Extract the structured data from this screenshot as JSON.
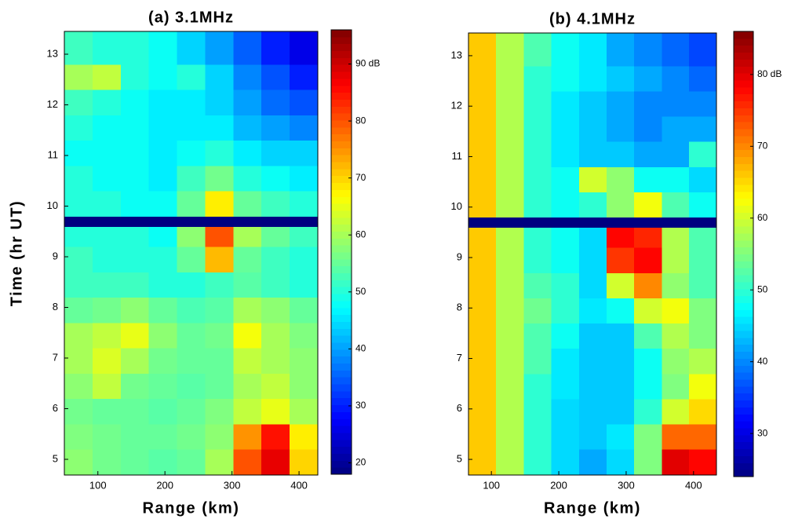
{
  "chart_data": [
    {
      "type": "heatmap",
      "title": "(a) 3.1MHz",
      "xlabel": "Range (km)",
      "ylabel": "Time (hr UT)",
      "colormap": "jet",
      "xlim": [
        50,
        428
      ],
      "ylim": [
        4.69,
        13.45
      ],
      "xticks": [
        100,
        200,
        300,
        400
      ],
      "yticks": [
        5,
        6,
        7,
        8,
        9,
        10,
        11,
        12,
        13
      ],
      "clim": [
        18,
        96
      ],
      "cticks": [
        20,
        30,
        40,
        50,
        60,
        70,
        80,
        {
          "value": 90,
          "label": "90 dB"
        }
      ],
      "x_bins": [
        50,
        92,
        134,
        176,
        218,
        260,
        302,
        344,
        386,
        428
      ],
      "y_bins": [
        4.69,
        5.2,
        5.7,
        6.2,
        6.7,
        7.2,
        7.7,
        8.2,
        8.7,
        9.2,
        9.6,
        9.8,
        10.3,
        10.8,
        11.3,
        11.8,
        12.3,
        12.8,
        13.45
      ],
      "z": [
        [
          58,
          56,
          55,
          54,
          55,
          60,
          80,
          88,
          70
        ],
        [
          57,
          56,
          55,
          55,
          56,
          58,
          75,
          85,
          68
        ],
        [
          56,
          55,
          55,
          54,
          55,
          57,
          62,
          65,
          60
        ],
        [
          58,
          62,
          56,
          55,
          54,
          55,
          60,
          62,
          58
        ],
        [
          60,
          64,
          60,
          56,
          55,
          55,
          62,
          60,
          58
        ],
        [
          60,
          62,
          65,
          58,
          55,
          56,
          66,
          60,
          57
        ],
        [
          55,
          56,
          58,
          55,
          53,
          54,
          60,
          58,
          55
        ],
        [
          52,
          52,
          52,
          50,
          50,
          52,
          54,
          52,
          50
        ],
        [
          52,
          50,
          50,
          50,
          55,
          72,
          55,
          52,
          50
        ],
        [
          50,
          50,
          50,
          48,
          58,
          80,
          60,
          55,
          52
        ],
        [
          null,
          null,
          null,
          null,
          null,
          null,
          null,
          null,
          null
        ],
        [
          50,
          50,
          48,
          48,
          55,
          68,
          55,
          52,
          50
        ],
        [
          50,
          48,
          48,
          46,
          52,
          56,
          50,
          48,
          46
        ],
        [
          48,
          48,
          48,
          46,
          48,
          50,
          46,
          44,
          44
        ],
        [
          50,
          48,
          48,
          46,
          46,
          46,
          42,
          40,
          38
        ],
        [
          52,
          50,
          48,
          46,
          46,
          44,
          40,
          36,
          34
        ],
        [
          60,
          62,
          50,
          48,
          50,
          44,
          38,
          34,
          30
        ],
        [
          52,
          50,
          50,
          48,
          44,
          40,
          35,
          30,
          26
        ]
      ]
    },
    {
      "type": "heatmap",
      "title": "(b) 4.1MHz",
      "xlabel": "Range (km)",
      "colormap": "jet",
      "xlim": [
        66,
        434
      ],
      "ylim": [
        4.69,
        13.45
      ],
      "xticks": [
        100,
        200,
        300,
        400
      ],
      "yticks": [
        5,
        6,
        7,
        8,
        9,
        10,
        11,
        12,
        13
      ],
      "clim": [
        24,
        86
      ],
      "cticks": [
        30,
        40,
        50,
        60,
        70,
        {
          "value": 80,
          "label": "80 dB"
        }
      ],
      "x_bins": [
        66,
        107,
        148,
        189,
        230,
        271,
        312,
        353,
        393,
        434
      ],
      "y_bins": [
        4.69,
        5.2,
        5.7,
        6.2,
        6.7,
        7.2,
        7.7,
        8.2,
        8.7,
        9.2,
        9.6,
        9.8,
        10.3,
        10.8,
        11.3,
        11.8,
        12.3,
        12.8,
        13.45
      ],
      "z": [
        [
          66,
          58,
          50,
          45,
          42,
          45,
          55,
          80,
          78
        ],
        [
          66,
          58,
          50,
          45,
          44,
          46,
          55,
          72,
          72
        ],
        [
          66,
          58,
          50,
          45,
          44,
          44,
          50,
          60,
          65
        ],
        [
          66,
          58,
          50,
          46,
          44,
          44,
          48,
          55,
          62
        ],
        [
          66,
          58,
          52,
          46,
          44,
          44,
          48,
          56,
          58
        ],
        [
          66,
          58,
          52,
          48,
          44,
          44,
          52,
          58,
          55
        ],
        [
          66,
          58,
          54,
          50,
          46,
          48,
          60,
          62,
          55
        ],
        [
          66,
          58,
          52,
          50,
          45,
          60,
          70,
          56,
          52
        ],
        [
          66,
          58,
          50,
          48,
          45,
          75,
          78,
          58,
          52
        ],
        [
          66,
          58,
          50,
          48,
          45,
          78,
          76,
          58,
          52
        ],
        [
          null,
          null,
          null,
          null,
          null,
          null,
          null,
          null,
          null
        ],
        [
          66,
          58,
          50,
          48,
          50,
          56,
          62,
          52,
          48
        ],
        [
          66,
          58,
          50,
          48,
          60,
          56,
          48,
          48,
          45
        ],
        [
          66,
          58,
          50,
          46,
          44,
          44,
          42,
          42,
          50
        ],
        [
          66,
          58,
          50,
          46,
          44,
          42,
          40,
          42,
          42
        ],
        [
          66,
          58,
          50,
          46,
          44,
          42,
          40,
          40,
          40
        ],
        [
          66,
          58,
          50,
          48,
          46,
          44,
          42,
          40,
          38
        ],
        [
          66,
          58,
          52,
          48,
          46,
          42,
          40,
          38,
          36
        ]
      ]
    }
  ]
}
